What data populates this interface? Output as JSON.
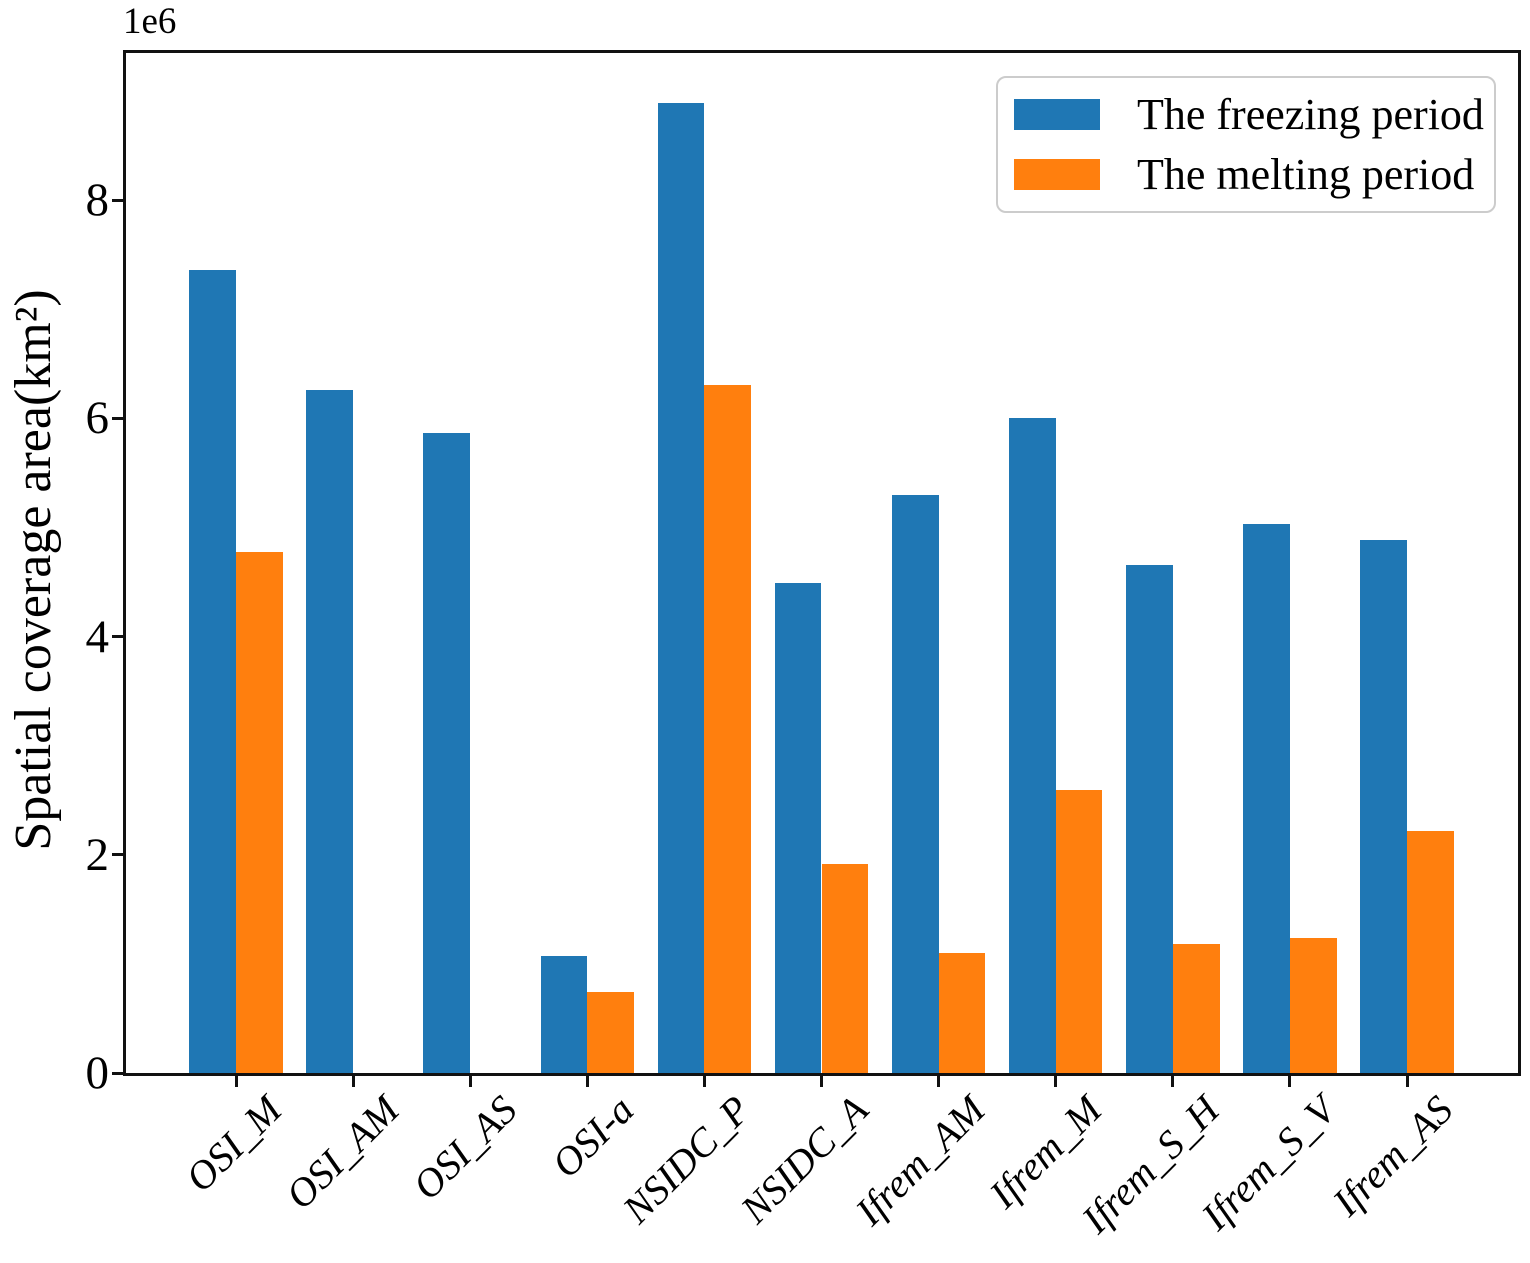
{
  "chart_data": {
    "type": "bar",
    "title": "",
    "xlabel": "",
    "ylabel": "Spatial coverage area(km²)",
    "offset_text": "1e6",
    "categories": [
      "OSI_M",
      "OSI_AM",
      "OSI_AS",
      "OSI-a",
      "NSIDC_P",
      "NSIDC_A",
      "Ifrem_AM",
      "Ifrem_M",
      "Ifrem_S_H",
      "Ifrem_S_V",
      "Ifrem_AS"
    ],
    "series": [
      {
        "name": "The freezing period",
        "color": "#1f77b4",
        "values": [
          7360000,
          6260000,
          5870000,
          1070000,
          8890000,
          4490000,
          5300000,
          6000000,
          4660000,
          5030000,
          4890000
        ]
      },
      {
        "name": "The melting period",
        "color": "#ff7f0e",
        "values": [
          4780000,
          0,
          0,
          740000,
          6310000,
          1920000,
          1100000,
          2590000,
          1180000,
          1240000,
          2220000
        ]
      }
    ],
    "ylim": [
      0,
      9350000
    ],
    "yticks": [
      0,
      2000000,
      4000000,
      6000000,
      8000000
    ],
    "ytick_labels": [
      "0",
      "2",
      "4",
      "6",
      "8"
    ],
    "legend_position": "upper right",
    "grid": false,
    "axis_color": "#111111",
    "legend_border_color": "#cccccc"
  }
}
